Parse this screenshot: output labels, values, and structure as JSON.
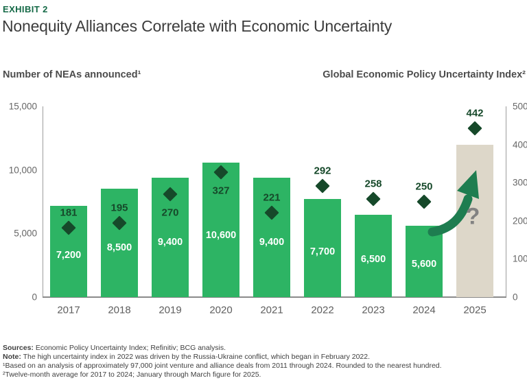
{
  "header": {
    "exhibit_label": "EXHIBIT 2",
    "title": "Nonequity Alliances Correlate with Economic Uncertainty"
  },
  "axis_titles": {
    "left": "Number of NEAs announced¹",
    "right": "Global Economic Policy Uncertainty Index²"
  },
  "chart_data": {
    "type": "bar",
    "subtype": "combo-bar-and-diamond-scatter",
    "categories": [
      "2017",
      "2018",
      "2019",
      "2020",
      "2021",
      "2022",
      "2023",
      "2024",
      "2025"
    ],
    "series": [
      {
        "name": "Number of NEAs announced",
        "type": "bar",
        "axis": "left",
        "values": [
          7200,
          8500,
          9400,
          10600,
          9400,
          7700,
          6500,
          5600,
          null
        ],
        "value_labels": [
          "7,200",
          "8,500",
          "9,400",
          "10,600",
          "9,400",
          "7,700",
          "6,500",
          "5,600",
          ""
        ]
      },
      {
        "name": "Global Economic Policy Uncertainty Index",
        "type": "scatter",
        "marker": "diamond",
        "axis": "right",
        "values": [
          181,
          195,
          270,
          327,
          221,
          292,
          258,
          250,
          442
        ],
        "value_labels": [
          "181",
          "195",
          "270",
          "327",
          "221",
          "292",
          "258",
          "250",
          "442"
        ],
        "label_placement": [
          "above",
          "above",
          "below",
          "below",
          "above",
          "above",
          "above",
          "above",
          "above"
        ]
      }
    ],
    "left_axis": {
      "range": [
        0,
        15000
      ],
      "tick_values": [
        15000,
        10000,
        5000,
        0
      ],
      "tick_labels": [
        "15,000",
        "10,000",
        "5,000",
        "0"
      ]
    },
    "right_axis": {
      "range": [
        0,
        500
      ],
      "tick_values": [
        500,
        400,
        300,
        200,
        100,
        0
      ],
      "tick_labels": [
        "500",
        "400",
        "300",
        "200",
        "100",
        "0"
      ]
    },
    "grid": "off",
    "legend": "none",
    "forecast": {
      "category": "2025",
      "bar_style": "beige-placeholder",
      "equivalent_left_value": 12000,
      "question_mark": "?",
      "annotation": "curved-up-arrow"
    }
  },
  "footer": {
    "sources_label": "Sources:",
    "sources_text": " Economic Policy Uncertainty Index; Refinitiv; BCG analysis.",
    "note_label": "Note:",
    "note_text": " The high uncertainty index in 2022 was driven by the Russia-Ukraine conflict, which began in February 2022.",
    "footnote1": "¹Based on an analysis of approximately 97,000 joint venture and alliance deals from 2011 through 2024. Rounded to the nearest hundred.",
    "footnote2": "²Twelve-month average for 2017 to 2024; January through March figure for 2025."
  },
  "colors": {
    "bar_green": "#2DB464",
    "diamond_dark_green": "#16492A",
    "marker_label_green": "#16492A",
    "forecast_beige": "#DDD7C9",
    "arrow_green": "#1E7D50",
    "question_mark_gray": "#828282",
    "exhibit_label_green": "#146946",
    "title_gray": "#3C3C3C",
    "axis_text_gray": "#666666",
    "footer_text_gray": "#3E3E3E",
    "bar_value_text": "#FFFFFF"
  }
}
